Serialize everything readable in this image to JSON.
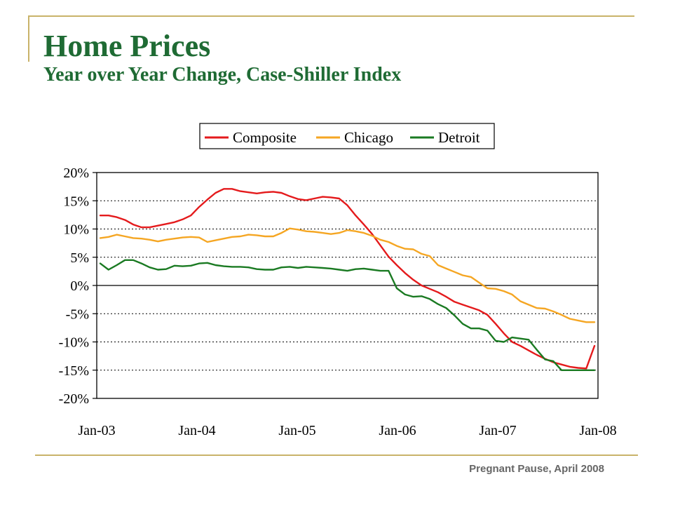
{
  "slide": {
    "title": "Home Prices",
    "subtitle": "Year over Year Change, Case-Shiller Index",
    "footer": "Pregnant Pause, April 2008"
  },
  "colors": {
    "accent_rule": "#c9b36a",
    "title": "#1f6b34"
  },
  "chart_data": {
    "type": "line",
    "xlabel": "",
    "ylabel": "",
    "ylim": [
      -20,
      20
    ],
    "xlim": [
      "2003-01",
      "2008-01"
    ],
    "y_ticks": [
      20,
      15,
      10,
      5,
      0,
      -5,
      -10,
      -15,
      -20
    ],
    "y_tick_labels": [
      "20%",
      "15%",
      "10%",
      "5%",
      "0%",
      "-5%",
      "-10%",
      "-15%",
      "-20%"
    ],
    "x_tick_labels": [
      "Jan-03",
      "Jan-04",
      "Jan-05",
      "Jan-06",
      "Jan-07",
      "Jan-08"
    ],
    "grid": "horizontal dotted",
    "legend_position": "top",
    "x": [
      "2003-01",
      "2003-02",
      "2003-03",
      "2003-04",
      "2003-05",
      "2003-06",
      "2003-07",
      "2003-08",
      "2003-09",
      "2003-10",
      "2003-11",
      "2003-12",
      "2004-01",
      "2004-02",
      "2004-03",
      "2004-04",
      "2004-05",
      "2004-06",
      "2004-07",
      "2004-08",
      "2004-09",
      "2004-10",
      "2004-11",
      "2004-12",
      "2005-01",
      "2005-02",
      "2005-03",
      "2005-04",
      "2005-05",
      "2005-06",
      "2005-07",
      "2005-08",
      "2005-09",
      "2005-10",
      "2005-11",
      "2005-12",
      "2006-01",
      "2006-02",
      "2006-03",
      "2006-04",
      "2006-05",
      "2006-06",
      "2006-07",
      "2006-08",
      "2006-09",
      "2006-10",
      "2006-11",
      "2006-12",
      "2007-01",
      "2007-02",
      "2007-03",
      "2007-04",
      "2007-05",
      "2007-06",
      "2007-07",
      "2007-08",
      "2007-09",
      "2007-10",
      "2007-11",
      "2007-12",
      "2008-01"
    ],
    "series": [
      {
        "name": "Composite",
        "color": "#e41a1c",
        "values": [
          12.4,
          12.4,
          12.1,
          11.6,
          10.8,
          10.3,
          10.3,
          10.6,
          10.9,
          11.2,
          11.7,
          12.4,
          13.9,
          15.2,
          16.4,
          17.1,
          17.1,
          16.7,
          16.5,
          16.3,
          16.5,
          16.6,
          16.4,
          15.8,
          15.3,
          15.1,
          15.4,
          15.7,
          15.6,
          15.4,
          14.2,
          12.4,
          10.8,
          9.1,
          7.1,
          5.1,
          3.6,
          2.2,
          1.0,
          0.0,
          -0.6,
          -1.2,
          -2.0,
          -2.9,
          -3.4,
          -3.9,
          -4.4,
          -5.2,
          -6.8,
          -8.5,
          -10.0,
          -10.7,
          -11.5,
          -12.3,
          -13.0,
          -13.6,
          -14.0,
          -14.4,
          -14.6,
          -14.7,
          -10.7
        ]
      },
      {
        "name": "Chicago",
        "color": "#f5a623",
        "values": [
          8.4,
          8.6,
          9.0,
          8.7,
          8.4,
          8.3,
          8.1,
          7.8,
          8.1,
          8.3,
          8.5,
          8.6,
          8.5,
          7.7,
          8.0,
          8.3,
          8.6,
          8.7,
          9.0,
          8.9,
          8.7,
          8.7,
          9.3,
          10.1,
          9.9,
          9.6,
          9.5,
          9.3,
          9.1,
          9.3,
          9.8,
          9.6,
          9.3,
          8.8,
          8.1,
          7.7,
          7.0,
          6.5,
          6.4,
          5.6,
          5.2,
          3.6,
          3.0,
          2.4,
          1.8,
          1.5,
          0.5,
          -0.5,
          -0.6,
          -1.0,
          -1.6,
          -2.8,
          -3.4,
          -4.0,
          -4.1,
          -4.6,
          -5.2,
          -5.9,
          -6.2,
          -6.5,
          -6.5
        ]
      },
      {
        "name": "Detroit",
        "color": "#1a7a22",
        "values": [
          3.9,
          2.8,
          3.6,
          4.5,
          4.5,
          3.9,
          3.2,
          2.8,
          2.9,
          3.5,
          3.4,
          3.5,
          3.9,
          4.0,
          3.6,
          3.4,
          3.3,
          3.3,
          3.2,
          2.9,
          2.8,
          2.8,
          3.2,
          3.3,
          3.1,
          3.3,
          3.2,
          3.1,
          3.0,
          2.8,
          2.6,
          2.9,
          3.0,
          2.8,
          2.6,
          2.6,
          -0.5,
          -1.6,
          -2.0,
          -1.9,
          -2.4,
          -3.3,
          -4.0,
          -5.3,
          -6.8,
          -7.6,
          -7.6,
          -8.0,
          -9.8,
          -10.0,
          -9.2,
          -9.4,
          -9.6,
          -11.4,
          -13.1,
          -13.4,
          -15.0,
          -15.0,
          -15.0,
          -15.0,
          -15.0
        ]
      }
    ]
  }
}
